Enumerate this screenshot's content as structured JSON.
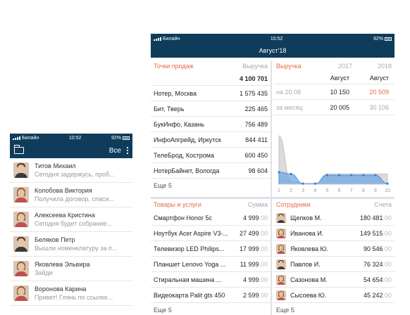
{
  "small_phone": {
    "status": {
      "carrier": "Билайн",
      "time": "10:52",
      "battery": "92%"
    },
    "header": {
      "action_label": "Все",
      "folder_icon": "folder-icon",
      "menu_icon": "kebab-menu-icon"
    },
    "chats": [
      {
        "name": "Титов Михаил",
        "message": "Сегодня задержусь, проб...",
        "gender": "m"
      },
      {
        "name": "Колобова Виктория",
        "message": "Получила договор, спаси...",
        "gender": "f"
      },
      {
        "name": "Алексеева Кристина",
        "message": "Сегодня будет собрание...",
        "gender": "f"
      },
      {
        "name": "Беляков Петр",
        "message": "Вышли номенклатуру за п...",
        "gender": "m"
      },
      {
        "name": "Яковлева Эльвира",
        "message": "Зайди",
        "gender": "f"
      },
      {
        "name": "Воронова Карина",
        "message": "Привет! Глянь по ссылке...",
        "gender": "f"
      }
    ]
  },
  "big_phone": {
    "status": {
      "carrier": "Билайн",
      "time": "10:52",
      "battery": "92%"
    },
    "title": "Август'18",
    "points_of_sale": {
      "title": "Точки продаж",
      "metric": "Выручка",
      "total": "4 100 701",
      "rows": [
        {
          "name": "Нотер, Москва",
          "value": "1 575 435"
        },
        {
          "name": "Бит, Тверь",
          "value": "225 465"
        },
        {
          "name": "БукИнфо, Казань",
          "value": "756 489"
        },
        {
          "name": "ИнфоАпгрейд, Иркутск",
          "value": "844 411"
        },
        {
          "name": "ТелеБрод, Кострома",
          "value": "600 450"
        },
        {
          "name": "НотерБайнет, Вологда",
          "value": "98 604"
        }
      ],
      "more": "Еще 5"
    },
    "revenue": {
      "title": "Выручка",
      "years": [
        "2017",
        "2018"
      ],
      "month_labels": [
        "Август",
        "Август"
      ],
      "rows": [
        {
          "label": "на 20.08",
          "v2017": "10 150",
          "v2018": "20 509"
        },
        {
          "label": "за месяц",
          "v2017": "20 005",
          "v2018": "30 106"
        }
      ]
    },
    "chart_data": {
      "type": "area",
      "x": [
        1,
        2,
        3,
        4,
        5,
        6,
        7,
        8,
        9,
        10
      ],
      "x_tick_labels": [
        "1",
        "2",
        "3",
        "4",
        "5",
        "6",
        "7",
        "8",
        "9",
        "10"
      ],
      "series": [
        {
          "values": [
            20,
            17,
            1,
            1,
            15,
            15,
            15,
            15,
            15,
            1
          ],
          "color": "#6fa8e6"
        },
        {
          "values": [
            80,
            5,
            0,
            0,
            17,
            17,
            17,
            17,
            17,
            17
          ],
          "color": "#cccccc"
        }
      ],
      "ylim": [
        0,
        100
      ],
      "grid": false
    },
    "goods": {
      "title": "Товары и услуги",
      "metric": "Сумма",
      "rows": [
        {
          "name": "Смартфон Honor 5c",
          "int": "4 999",
          "dec": ".00"
        },
        {
          "name": "Ноутбук Acer Aspire V3-...",
          "int": "27 499",
          "dec": ".00"
        },
        {
          "name": "Телевизор LED Philips...",
          "int": "17 999",
          "dec": ".00"
        },
        {
          "name": "Планшет Lenovo Yoga ...",
          "int": "11 999",
          "dec": ".00"
        },
        {
          "name": "Стиральная машина ...",
          "int": "4 999",
          "dec": ".00"
        },
        {
          "name": "Видеокарта Palit gts 450",
          "int": "2 599",
          "dec": ".00"
        }
      ],
      "more": "Еще 5"
    },
    "employees": {
      "title": "Сотрудники",
      "metric": "Счета",
      "rows": [
        {
          "name": "Щепков М.",
          "int": "180 481",
          "dec": ".00",
          "gender": "m"
        },
        {
          "name": "Иванова И.",
          "int": "149 515",
          "dec": ".00",
          "gender": "f"
        },
        {
          "name": "Яковлева Ю.",
          "int": "90 546",
          "dec": ".00",
          "gender": "f"
        },
        {
          "name": "Павлов И.",
          "int": "76 324",
          "dec": ".00",
          "gender": "m"
        },
        {
          "name": "Сазонова М.",
          "int": "54 654",
          "dec": ".00",
          "gender": "f"
        },
        {
          "name": "Сысоева Ю.",
          "int": "45 242",
          "dec": ".00",
          "gender": "f"
        }
      ],
      "more": "Еще 5"
    }
  }
}
